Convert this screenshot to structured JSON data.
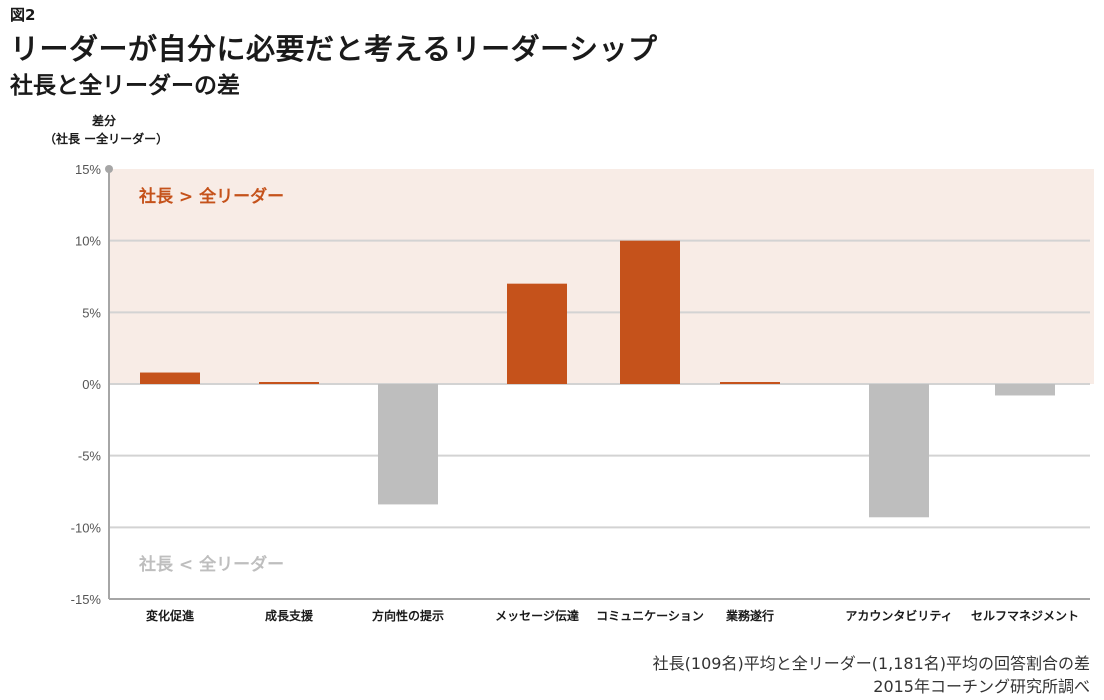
{
  "figure_label": "図2",
  "title": "リーダーが自分に必要だと考えるリーダーシップ",
  "subtitle": "社長と全リーダーの差",
  "notes": [
    "社長(109名)平均と全リーダー(1,181名)平均の回答割合の差",
    "2015年コーチング研究所調べ"
  ],
  "colors": {
    "positive": "#c5521b",
    "negative": "#bebebe",
    "positive_region": "#f8ece6",
    "grid": "#d3d3d3",
    "axis": "#a6a6a6"
  },
  "chart_data": {
    "type": "bar",
    "title": "リーダーが自分に必要だと考えるリーダーシップ 社長と全リーダーの差",
    "ylabel_line1": "差分",
    "ylabel_line2": "（社長 ー全リーダー）",
    "categories": [
      "変化促進",
      "成長支援",
      "方向性の提示",
      "メッセージ伝達",
      "コミュニケーション",
      "業務遂行",
      "アカウンタビリティ",
      "セルフマネジメント"
    ],
    "values": [
      0.8,
      0.1,
      -8.4,
      7.0,
      10.0,
      0.1,
      -9.3,
      -0.8
    ],
    "ylim": [
      -15,
      15
    ],
    "yticks": [
      15,
      10,
      5,
      0,
      -5,
      -10,
      -15
    ],
    "ytick_labels": [
      "15%",
      "10%",
      "5%",
      "0%",
      "-5%",
      "-10%",
      "-15%"
    ],
    "annotations": {
      "upper": "社長 > 全リーダー",
      "lower": "社長 < 全リーダー"
    },
    "grid": true
  }
}
